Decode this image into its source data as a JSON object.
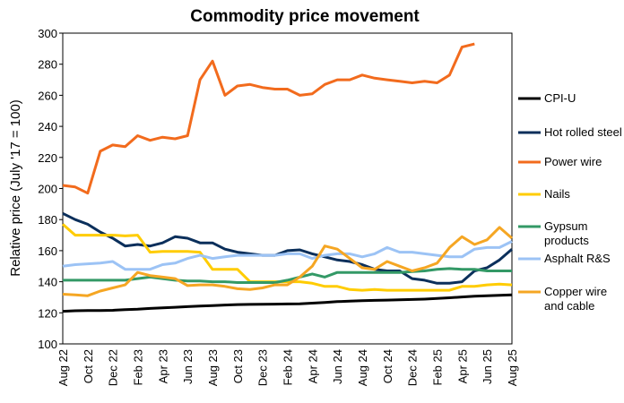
{
  "chart_data": {
    "type": "line",
    "title": "Commodity price movement",
    "y_label": "Relative price (July '17 = 100)",
    "categories": [
      "Aug 22",
      null,
      "Oct 22",
      null,
      "Dec 22",
      null,
      "Feb 23",
      null,
      "Apr 23",
      null,
      "Jun 23",
      null,
      "Aug 23",
      null,
      "Oct 23",
      null,
      "Dec 23",
      null,
      "Feb 24",
      null,
      "Apr 24",
      null,
      "Jun 24",
      null,
      "Aug 24",
      null,
      "Oct 24",
      null,
      "Dec 24",
      null,
      "Feb 25",
      null,
      "Apr 25",
      null,
      "Jun 25",
      null,
      "Aug 25"
    ],
    "ylim": [
      100,
      300
    ],
    "yticks": [
      100,
      120,
      140,
      160,
      180,
      200,
      220,
      240,
      260,
      280,
      300
    ],
    "grid": false,
    "legend": "right",
    "series": [
      {
        "name": "CPI-U",
        "color": "#000000",
        "values": [
          121,
          121.3,
          121.5,
          121.5,
          121.6,
          122,
          122.3,
          122.8,
          123.2,
          123.6,
          124,
          124.3,
          124.6,
          125,
          125.3,
          125.4,
          125.5,
          125.6,
          125.7,
          125.8,
          126.2,
          126.6,
          127.2,
          127.5,
          127.8,
          128,
          128.2,
          128.4,
          128.6,
          128.8,
          129.2,
          129.7,
          130.2,
          130.7,
          131,
          131.3,
          131.5
        ]
      },
      {
        "name": "Hot rolled steel",
        "color": "#0b2f5b",
        "values": [
          184,
          180,
          177,
          172,
          168,
          163,
          164,
          163,
          165,
          169,
          168,
          165,
          165,
          161,
          159,
          158,
          157,
          157,
          160,
          160.5,
          158,
          156,
          154,
          153,
          151,
          148,
          147,
          147,
          142,
          141,
          139,
          139,
          140,
          147,
          149,
          154,
          161
        ]
      },
      {
        "name": "Power wire",
        "color": "#f26b1d",
        "values": [
          202,
          201,
          197,
          224,
          228,
          227,
          234,
          231,
          233,
          232,
          234,
          270,
          282,
          260,
          266,
          267,
          265,
          264,
          264,
          260,
          261,
          267,
          270,
          270,
          273,
          271,
          270,
          269,
          268,
          269,
          268,
          273,
          291,
          293,
          null,
          null,
          null
        ]
      },
      {
        "name": "Nails",
        "color": "#ffcc00",
        "values": [
          177,
          170,
          170,
          170,
          170,
          169.5,
          170,
          159,
          159.5,
          159.5,
          159.5,
          159,
          148,
          148,
          148,
          140,
          140,
          140,
          140,
          140,
          139,
          137,
          137,
          135,
          134.5,
          135,
          134.5,
          134.5,
          134.5,
          134.5,
          134.5,
          134.5,
          137,
          137,
          138,
          138.5,
          138
        ]
      },
      {
        "name": "Gypsum products",
        "color": "#339966",
        "values": [
          141,
          141,
          141,
          141,
          141,
          141,
          142,
          143,
          142,
          141,
          140.5,
          140.5,
          140,
          140,
          139.5,
          139.5,
          139.5,
          139.5,
          141,
          143,
          145,
          143,
          146,
          146,
          146,
          146,
          146,
          146,
          146.5,
          147,
          148,
          148.5,
          148,
          148,
          147,
          147,
          147
        ]
      },
      {
        "name": "Asphalt R&S",
        "color": "#9cc3f5",
        "values": [
          150,
          151,
          151.5,
          152,
          153,
          148,
          148,
          148,
          151,
          152,
          155,
          157,
          155,
          156,
          157,
          157,
          157,
          157,
          158,
          158,
          155,
          157,
          158,
          158,
          156,
          158,
          162,
          159,
          159,
          158,
          157,
          156,
          156,
          161,
          162,
          162,
          166
        ]
      },
      {
        "name": "Copper wire and cable",
        "color": "#f5a623",
        "values": [
          132,
          131.5,
          131,
          134,
          136,
          138,
          146,
          144,
          143,
          142,
          137.5,
          138,
          138,
          137,
          135.5,
          135,
          136,
          138,
          138,
          143,
          150,
          163,
          161,
          155,
          149,
          148,
          153,
          150,
          147,
          149,
          152,
          162,
          169,
          164,
          167,
          175,
          168
        ]
      }
    ]
  }
}
